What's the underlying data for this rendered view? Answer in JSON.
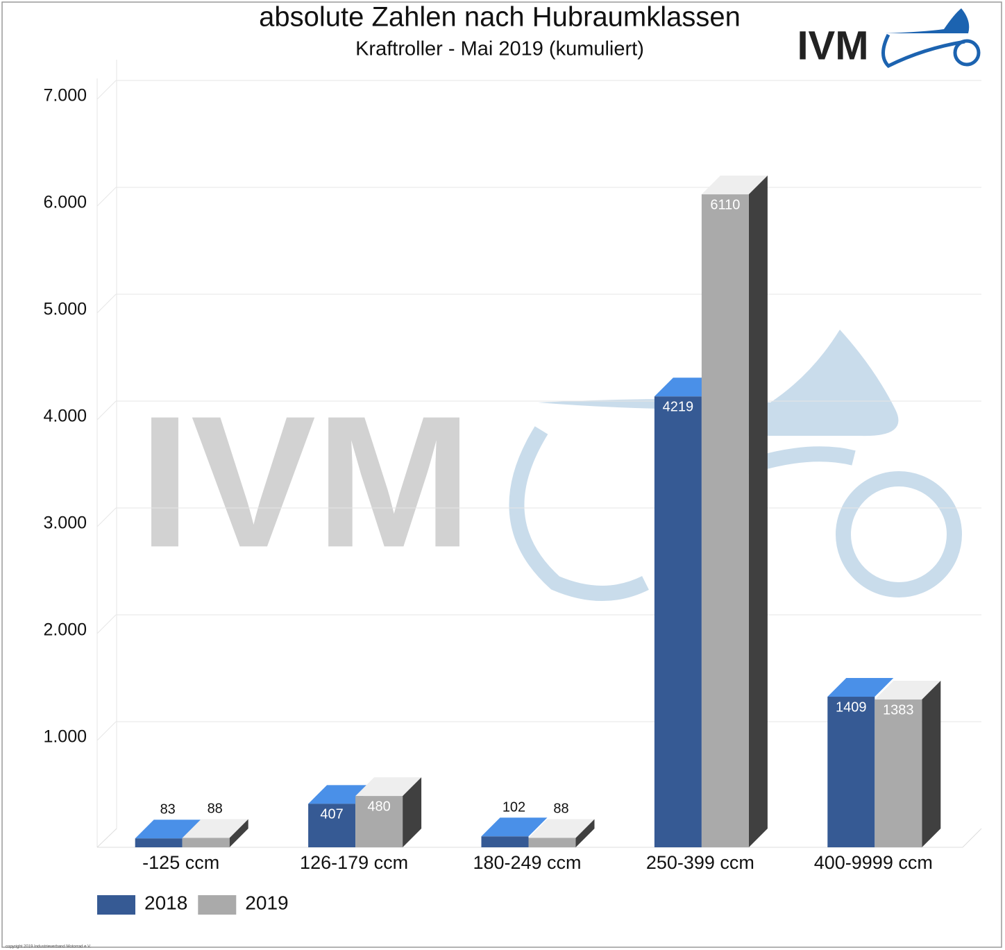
{
  "chart_data": {
    "type": "bar3d",
    "title": "absolute Zahlen nach Hubraumklassen",
    "subtitle": "Kraftroller - Mai 2019 (kumuliert)",
    "logo_text": "IVM",
    "watermark_text": "IVM",
    "copyright": "copyright 2019 Industrieverband Motorrad e.V.",
    "categories": [
      "-125 ccm",
      "126-179 ccm",
      "180-249 ccm",
      "250-399 ccm",
      "400-9999 ccm"
    ],
    "series": [
      {
        "name": "2018",
        "color": "#365a94",
        "top_color": "#4a90e8",
        "values": [
          83,
          407,
          102,
          4219,
          1409
        ]
      },
      {
        "name": "2019",
        "color": "#aaaaaa",
        "top_color": "#eeeeee",
        "side_color": "#404040",
        "values": [
          88,
          480,
          88,
          6110,
          1383
        ]
      }
    ],
    "ylim": [
      0,
      7000
    ],
    "yticks": [
      {
        "value": 1000,
        "label": "1.000"
      },
      {
        "value": 2000,
        "label": "2.000"
      },
      {
        "value": 3000,
        "label": "3.000"
      },
      {
        "value": 4000,
        "label": "4.000"
      },
      {
        "value": 5000,
        "label": "5.000"
      },
      {
        "value": 6000,
        "label": "6.000"
      },
      {
        "value": 7000,
        "label": "7.000"
      }
    ],
    "grid": true,
    "legend": "bottom-left"
  }
}
